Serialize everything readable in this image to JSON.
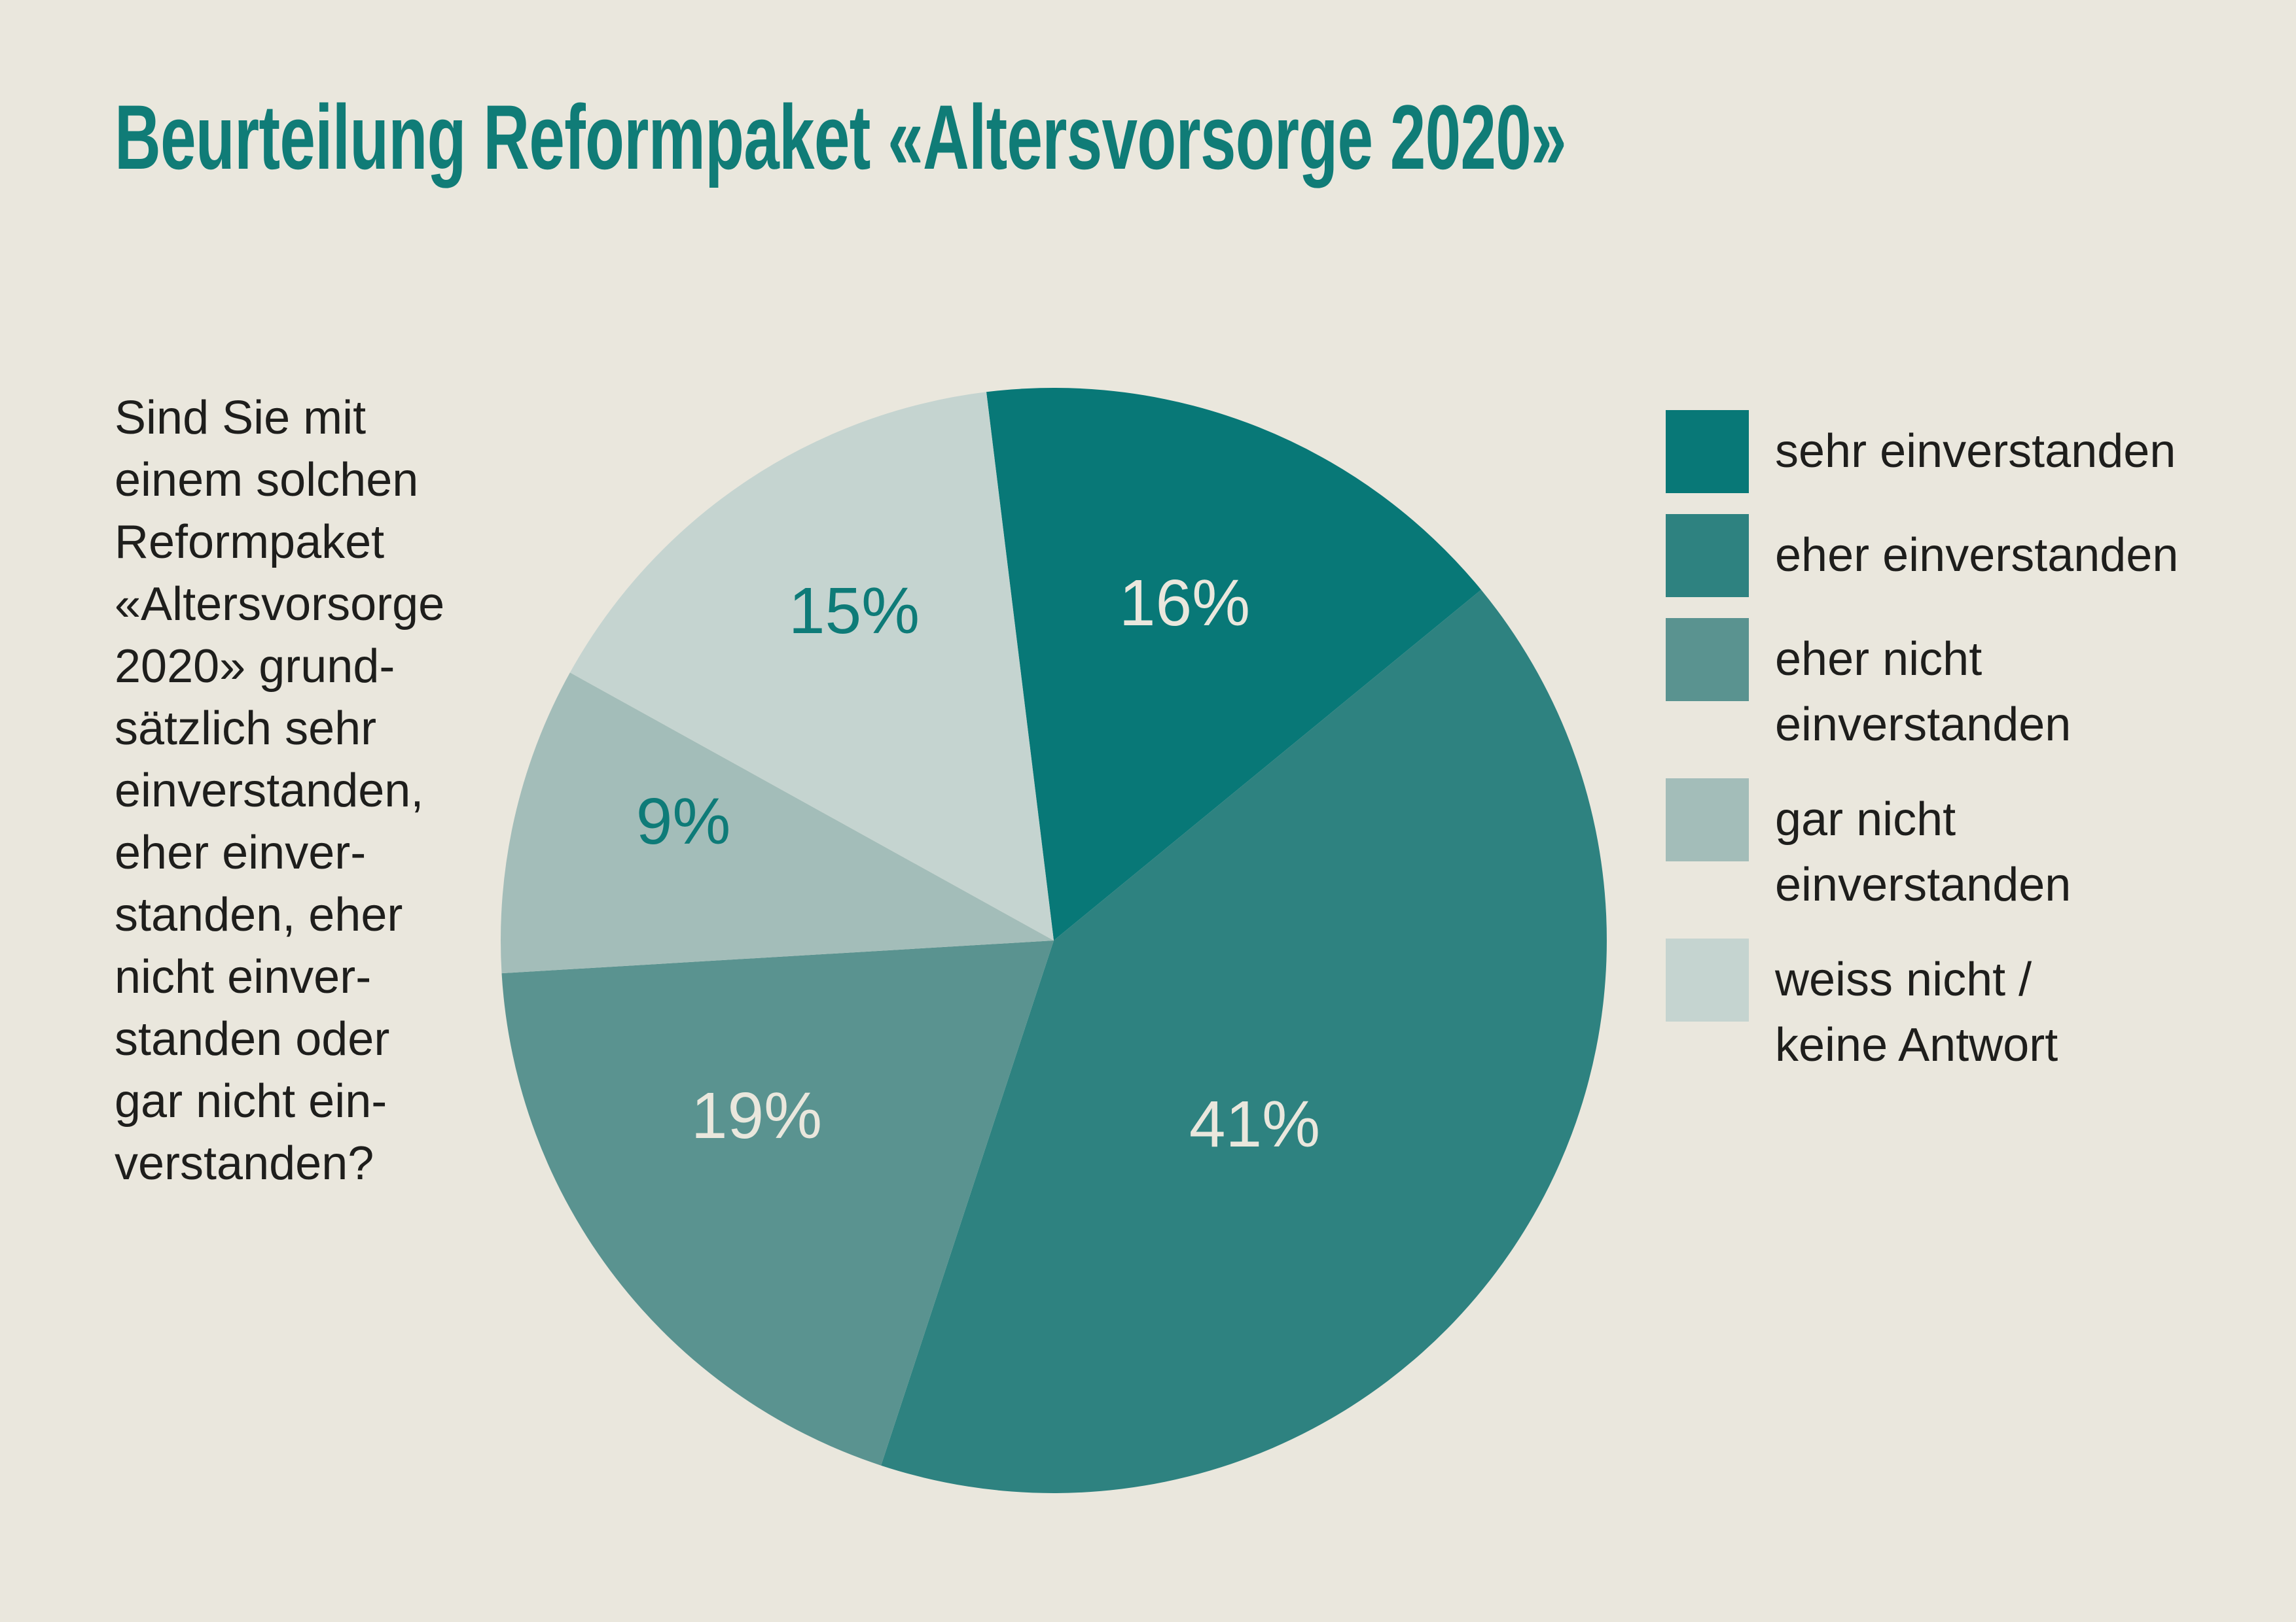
{
  "title": "Beurteilung Reformpaket «Altersvorsorge 2020»",
  "question": {
    "lines": [
      "Sind Sie mit",
      "einem solchen",
      "Reformpaket",
      "«Altersvorsorge",
      "2020» grund-",
      "sätzlich sehr",
      "einverstanden,",
      "eher einver-",
      "standen, eher",
      "nicht einver-",
      "standen oder",
      "gar nicht ein-",
      "verstanden?"
    ]
  },
  "legend": {
    "items": [
      {
        "label": "sehr einverstanden",
        "lines": [
          "sehr einverstanden"
        ],
        "color": "#087877"
      },
      {
        "label": "eher einverstanden",
        "lines": [
          "eher einverstanden"
        ],
        "color": "#2E8280"
      },
      {
        "label": "eher nicht einverstanden",
        "lines": [
          "eher nicht",
          "einverstanden"
        ],
        "color": "#5A9390"
      },
      {
        "label": "gar nicht einverstanden",
        "lines": [
          "gar nicht",
          "einverstanden"
        ],
        "color": "#A3BDB9"
      },
      {
        "label": "weiss nicht / keine Antwort",
        "lines": [
          "weiss nicht /",
          "keine Antwort"
        ],
        "color": "#C5D4D0"
      }
    ]
  },
  "chart_data": {
    "type": "pie",
    "title": "Beurteilung Reformpaket «Altersvorsorge 2020»",
    "categories": [
      "sehr einverstanden",
      "eher einverstanden",
      "eher nicht einverstanden",
      "gar nicht einverstanden",
      "weiss nicht / keine Antwort"
    ],
    "values": [
      16,
      41,
      19,
      9,
      15
    ],
    "unit": "%",
    "labels": [
      "16%",
      "41%",
      "19%",
      "9%",
      "15%"
    ],
    "colors": [
      "#087877",
      "#2E8280",
      "#5A9390",
      "#A3BDB9",
      "#C5D4D0"
    ],
    "label_colors": [
      "#EAE7DD",
      "#EAE7DD",
      "#EAE7DD",
      "#0E7B78",
      "#0E7B78"
    ],
    "start_angle_deg": -7,
    "direction": "clockwise",
    "legend_position": "right"
  },
  "colors": {
    "background": "#EAE7DD",
    "title": "#107C77",
    "body_text": "#1E1E1C",
    "label_on_dark": "#EAE7DD",
    "label_on_light": "#0E7B78"
  }
}
